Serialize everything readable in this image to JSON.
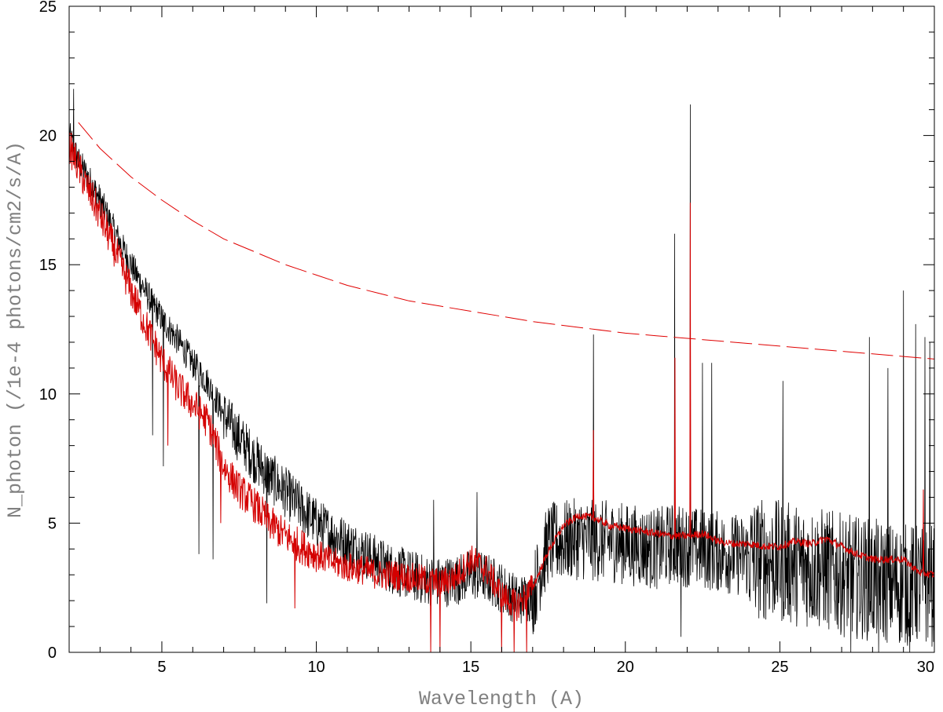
{
  "chart_data": {
    "type": "line",
    "title": "",
    "xlabel": "Wavelength (A)",
    "ylabel": "N_photon (/1e-4 photons/cm2/s/A)",
    "xlim": [
      2,
      30
    ],
    "ylim": [
      0,
      25
    ],
    "x_major_ticks": [
      5,
      10,
      15,
      20,
      25,
      30
    ],
    "x_tick_labels": [
      "5",
      "10",
      "15",
      "20",
      "25",
      "30"
    ],
    "x_minor_step": 1,
    "y_major_ticks": [
      0,
      5,
      10,
      15,
      20,
      25
    ],
    "y_tick_labels": [
      "0",
      "5",
      "10",
      "15",
      "20",
      "25"
    ],
    "y_minor_step": 1,
    "grid": false,
    "legend": "none",
    "colors": {
      "observed": "#000000",
      "model": "#d40000",
      "continuum": "#e00000",
      "axes": "#000000",
      "axis_title": "#808080"
    },
    "series": [
      {
        "key": "observed",
        "style": "solid",
        "x": [
          2.0,
          2.3,
          2.6,
          3.0,
          3.5,
          4.0,
          4.5,
          5.0,
          5.5,
          6.0,
          6.5,
          7.0,
          7.5,
          8.0,
          8.5,
          9.0,
          9.5,
          10.0,
          10.5,
          11.0,
          11.5,
          12.0,
          12.5,
          13.0,
          13.5,
          14.0,
          14.5,
          15.0,
          15.5,
          16.0,
          16.5,
          17.0,
          17.5,
          18.0,
          18.5,
          19.0,
          19.5,
          20.0,
          20.5,
          21.0,
          21.5,
          22.0,
          22.5,
          23.0,
          23.5,
          24.0,
          24.5,
          25.0,
          25.5,
          26.0,
          26.5,
          27.0,
          27.5,
          28.0,
          28.5,
          29.0,
          29.5,
          30.0
        ],
        "y": [
          20.0,
          19.0,
          18.4,
          17.5,
          16.2,
          15.0,
          13.9,
          12.9,
          12.1,
          11.2,
          10.4,
          9.2,
          8.3,
          7.5,
          6.8,
          6.2,
          5.6,
          5.0,
          4.6,
          4.2,
          3.9,
          3.5,
          3.2,
          3.0,
          2.8,
          2.7,
          2.8,
          3.0,
          2.9,
          2.5,
          2.0,
          2.2,
          4.2,
          4.3,
          4.4,
          4.3,
          4.3,
          4.2,
          4.1,
          4.0,
          4.2,
          4.1,
          4.0,
          3.9,
          3.8,
          3.7,
          3.6,
          3.5,
          3.4,
          3.3,
          3.2,
          3.0,
          2.9,
          2.8,
          2.7,
          2.6,
          2.6,
          2.6
        ],
        "spikes": [
          {
            "x": 2.15,
            "y": 21.8
          },
          {
            "x": 4.7,
            "y": 8.4
          },
          {
            "x": 5.05,
            "y": 7.2
          },
          {
            "x": 6.2,
            "y": 3.8
          },
          {
            "x": 6.65,
            "y": 3.6
          },
          {
            "x": 8.4,
            "y": 1.9
          },
          {
            "x": 13.8,
            "y": 5.9
          },
          {
            "x": 15.2,
            "y": 6.2
          },
          {
            "x": 18.97,
            "y": 12.3
          },
          {
            "x": 21.6,
            "y": 16.2
          },
          {
            "x": 21.8,
            "y": 0.6
          },
          {
            "x": 22.1,
            "y": 21.2
          },
          {
            "x": 22.5,
            "y": 11.2
          },
          {
            "x": 22.8,
            "y": 11.2
          },
          {
            "x": 25.1,
            "y": 10.5
          },
          {
            "x": 27.9,
            "y": 12.2
          },
          {
            "x": 28.5,
            "y": 11.0
          },
          {
            "x": 29.0,
            "y": 14.0
          },
          {
            "x": 29.4,
            "y": 12.7
          },
          {
            "x": 29.7,
            "y": 12.2
          },
          {
            "x": 29.85,
            "y": 12.0
          },
          {
            "x": 27.3,
            "y": 0.0
          },
          {
            "x": 28.2,
            "y": 0.0
          },
          {
            "x": 29.2,
            "y": 0.0
          }
        ]
      },
      {
        "key": "model",
        "style": "solid",
        "x": [
          2.0,
          2.5,
          3.0,
          3.5,
          4.0,
          4.5,
          5.0,
          5.5,
          6.0,
          6.5,
          7.0,
          7.5,
          8.0,
          8.5,
          9.0,
          9.5,
          10.0,
          10.5,
          11.0,
          11.5,
          12.0,
          12.5,
          13.0,
          13.5,
          14.0,
          14.5,
          15.0,
          15.5,
          16.0,
          16.5,
          17.0,
          17.5,
          18.0,
          18.5,
          19.0,
          19.5,
          20.0,
          20.5,
          21.0,
          21.5,
          22.0,
          22.5,
          23.0,
          23.5,
          24.0,
          24.5,
          25.0,
          25.5,
          26.0,
          26.5,
          27.0,
          27.5,
          28.0,
          28.5,
          29.0,
          29.5,
          30.0
        ],
        "y": [
          19.6,
          18.2,
          16.9,
          15.5,
          14.0,
          12.6,
          11.3,
          10.3,
          9.6,
          8.9,
          7.2,
          6.3,
          5.7,
          5.0,
          4.5,
          4.1,
          3.8,
          3.5,
          3.3,
          3.2,
          3.0,
          3.0,
          2.9,
          2.8,
          2.7,
          2.9,
          3.6,
          3.2,
          2.2,
          1.8,
          2.5,
          3.9,
          4.9,
          5.3,
          5.2,
          4.9,
          4.8,
          4.7,
          4.6,
          4.5,
          4.5,
          4.6,
          4.3,
          4.2,
          4.2,
          4.1,
          4.1,
          4.3,
          4.2,
          4.4,
          4.1,
          3.8,
          3.6,
          3.6,
          3.6,
          3.1,
          3.0
        ],
        "spikes": [
          {
            "x": 5.2,
            "y": 8.0
          },
          {
            "x": 6.9,
            "y": 5.0
          },
          {
            "x": 9.3,
            "y": 1.7
          },
          {
            "x": 13.7,
            "y": 0.0
          },
          {
            "x": 14.0,
            "y": 0.0
          },
          {
            "x": 16.0,
            "y": 0.0
          },
          {
            "x": 16.4,
            "y": 0.0
          },
          {
            "x": 16.8,
            "y": 0.0
          },
          {
            "x": 18.97,
            "y": 8.6
          },
          {
            "x": 21.6,
            "y": 11.4
          },
          {
            "x": 22.1,
            "y": 17.4
          },
          {
            "x": 29.65,
            "y": 6.3
          }
        ]
      },
      {
        "key": "continuum",
        "style": "dashed",
        "x": [
          2.3,
          3.0,
          4.0,
          5.0,
          6.0,
          7.0,
          8.0,
          9.0,
          10.0,
          11.0,
          12.0,
          13.0,
          14.0,
          15.0,
          16.0,
          17.0,
          18.0,
          19.0,
          20.0,
          21.0,
          22.0,
          23.0,
          24.0,
          25.0,
          26.0,
          27.0,
          28.0,
          29.0,
          30.0
        ],
        "y": [
          20.5,
          19.5,
          18.4,
          17.5,
          16.7,
          16.0,
          15.5,
          15.0,
          14.6,
          14.2,
          13.9,
          13.6,
          13.4,
          13.2,
          13.0,
          12.8,
          12.65,
          12.5,
          12.35,
          12.25,
          12.15,
          12.05,
          11.95,
          11.85,
          11.75,
          11.65,
          11.55,
          11.45,
          11.35
        ]
      }
    ]
  }
}
